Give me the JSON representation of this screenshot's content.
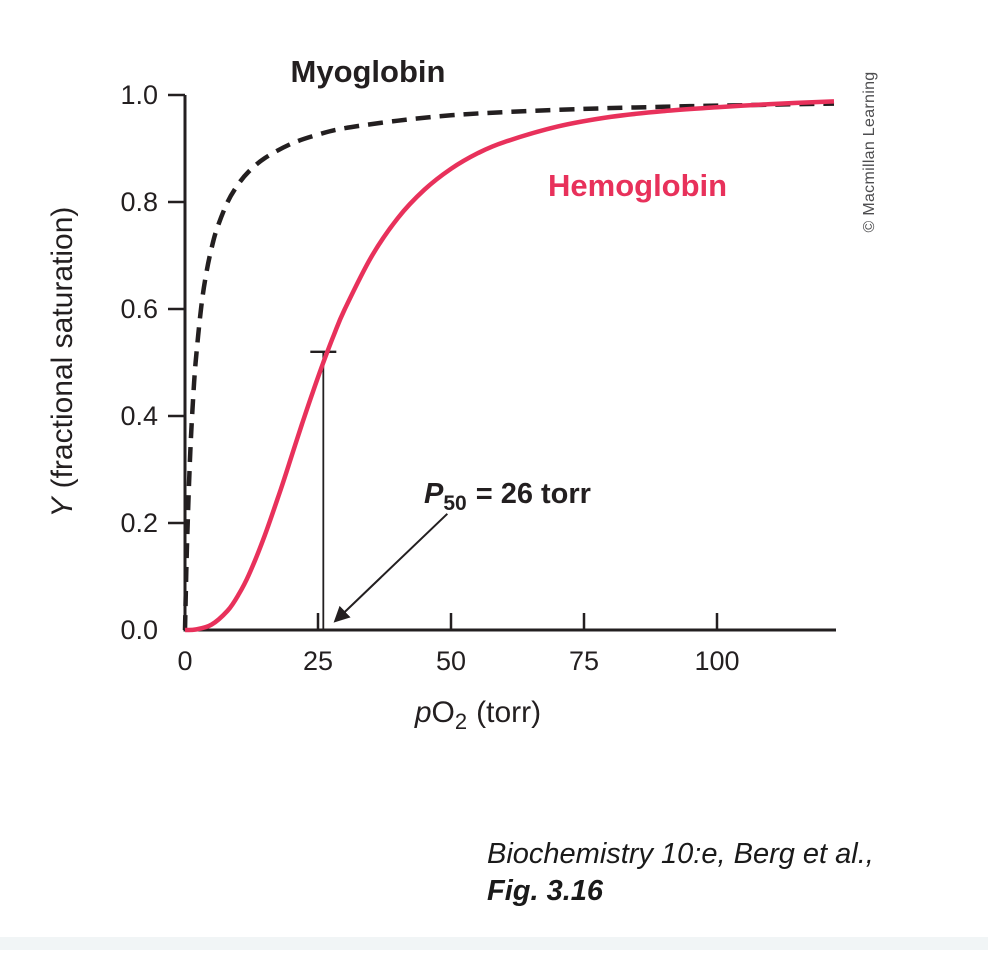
{
  "figure": {
    "copyright": "© Macmillan Learning",
    "caption_line1": "Biochemistry 10:e, Berg et al.,",
    "caption_line2": "Fig. 3.16"
  },
  "chart_data": {
    "type": "line",
    "title": "",
    "ink": "#231f20",
    "grid": false,
    "legend": false,
    "xlabel": "pO2 (torr)",
    "xlabel_parts": {
      "italic": "p",
      "main": "O",
      "sub": "2",
      "rest": "(torr)"
    },
    "ylabel": "Y (fractional saturation)",
    "ylabel_parts": {
      "italic": "Y",
      "rest": "(fractional saturation)"
    },
    "xlim": [
      0,
      122
    ],
    "ylim": [
      0,
      1.0
    ],
    "x_ticks": [
      "0",
      "25",
      "50",
      "75",
      "100"
    ],
    "y_ticks": [
      "0.0",
      "0.2",
      "0.4",
      "0.6",
      "0.8",
      "1.0"
    ],
    "annotation": {
      "text": "P50 = 26 torr",
      "parts": {
        "p": "P",
        "sub": "50",
        "rest": "= 26 torr"
      },
      "x": 26,
      "y": 0.52
    },
    "series": [
      {
        "name": "Myoglobin",
        "color": "#231f20",
        "style": "dashed",
        "points": [
          [
            0,
            0
          ],
          [
            0.25,
            0.111
          ],
          [
            0.5,
            0.2
          ],
          [
            1,
            0.333
          ],
          [
            1.5,
            0.429
          ],
          [
            2,
            0.5
          ],
          [
            3,
            0.6
          ],
          [
            4,
            0.667
          ],
          [
            5,
            0.714
          ],
          [
            6,
            0.75
          ],
          [
            8,
            0.8
          ],
          [
            10,
            0.833
          ],
          [
            12,
            0.857
          ],
          [
            15,
            0.882
          ],
          [
            20,
            0.909
          ],
          [
            25,
            0.926
          ],
          [
            30,
            0.938
          ],
          [
            40,
            0.952
          ],
          [
            50,
            0.962
          ],
          [
            60,
            0.968
          ],
          [
            75,
            0.974
          ],
          [
            90,
            0.978
          ],
          [
            105,
            0.981
          ],
          [
            122,
            0.984
          ]
        ]
      },
      {
        "name": "Hemoglobin",
        "color": "#e8315b",
        "style": "solid",
        "points": [
          [
            0,
            0
          ],
          [
            2,
            0.001
          ],
          [
            5,
            0.01
          ],
          [
            8,
            0.036
          ],
          [
            10,
            0.065
          ],
          [
            12,
            0.103
          ],
          [
            15,
            0.177
          ],
          [
            18,
            0.263
          ],
          [
            20,
            0.324
          ],
          [
            22,
            0.385
          ],
          [
            24,
            0.444
          ],
          [
            26,
            0.5
          ],
          [
            28,
            0.552
          ],
          [
            30,
            0.599
          ],
          [
            35,
            0.697
          ],
          [
            40,
            0.77
          ],
          [
            45,
            0.823
          ],
          [
            50,
            0.862
          ],
          [
            55,
            0.891
          ],
          [
            60,
            0.912
          ],
          [
            70,
            0.941
          ],
          [
            80,
            0.959
          ],
          [
            90,
            0.97
          ],
          [
            100,
            0.977
          ],
          [
            110,
            0.983
          ],
          [
            122,
            0.988
          ]
        ]
      }
    ]
  }
}
